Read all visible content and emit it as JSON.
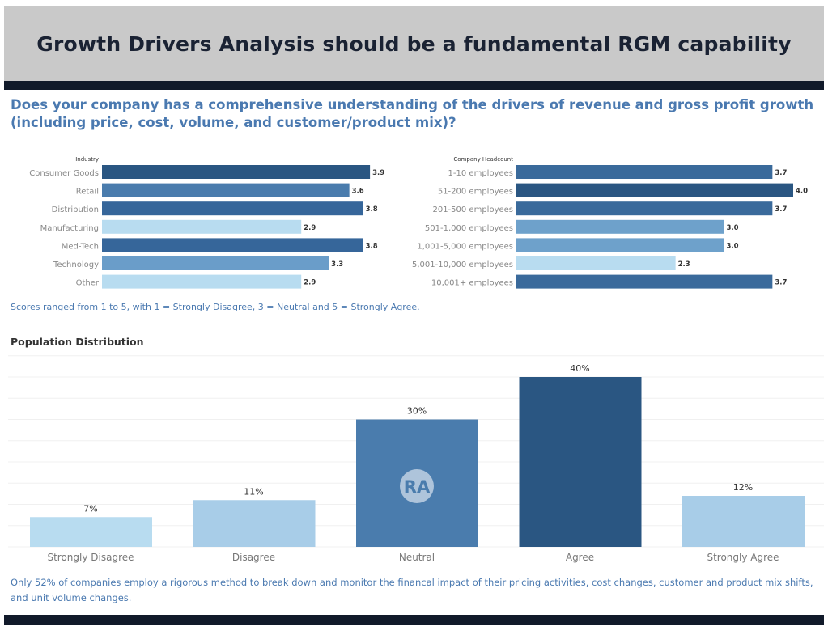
{
  "header": {
    "title": "Growth Drivers Analysis should be a fundamental RGM capability"
  },
  "question": "Does your company has a comprehensive understanding of the drivers of revenue and gross profit growth (including price, cost, volume, and customer/product mix)?",
  "score_note": "Scores ranged from 1 to 5, with 1 = Strongly Disagree, 3 = Neutral and 5 = Strongly Agree.",
  "footer_note": "Only 52% of companies employ a rigorous method to break down and monitor the financal impact of their pricing activities, cost changes, customer and product mix shifts, and unit volume changes.",
  "logo": "RA",
  "chart_data": [
    {
      "type": "bar",
      "orientation": "horizontal",
      "title": "Industry",
      "categories": [
        "Consumer Goods",
        "Retail",
        "Distribution",
        "Manufacturing",
        "Med-Tech",
        "Technology",
        "Other"
      ],
      "values": [
        3.9,
        3.6,
        3.8,
        2.9,
        3.8,
        3.3,
        2.9
      ],
      "data_labels": [
        "3.9",
        "3.6",
        "3.8",
        "2.9",
        "3.8",
        "3.3",
        "2.9"
      ],
      "colors": [
        "#2a5682",
        "#4a7cad",
        "#36669a",
        "#b8dcf0",
        "#36669a",
        "#6a9dc9",
        "#b8dcf0"
      ]
    },
    {
      "type": "bar",
      "orientation": "horizontal",
      "title": "Company Headcount",
      "categories": [
        "1-10 employees",
        "51-200 employees",
        "201-500 employees",
        "501-1,000 employees",
        "1,001-5,000 employees",
        "5,001-10,000 employees",
        "10,001+ employees"
      ],
      "values": [
        3.7,
        4.0,
        3.7,
        3.0,
        3.0,
        2.3,
        3.7
      ],
      "data_labels": [
        "3.7",
        "4.0",
        "3.7",
        "3.0",
        "3.0",
        "2.3",
        "3.7"
      ],
      "colors": [
        "#3a6a9b",
        "#2a5682",
        "#3a6a9b",
        "#6ea1cb",
        "#6ea1cb",
        "#b8dcf0",
        "#3a6a9b"
      ]
    },
    {
      "type": "bar",
      "title": "Population Distribution",
      "categories": [
        "Strongly Disagree",
        "Disagree",
        "Neutral",
        "Agree",
        "Strongly Agree"
      ],
      "values": [
        7,
        11,
        30,
        40,
        12
      ],
      "data_labels": [
        "7%",
        "11%",
        "30%",
        "40%",
        "12%"
      ],
      "ylim": [
        0,
        45
      ],
      "grid": true,
      "colors": [
        "#b8dcf0",
        "#a8cde8",
        "#4a7cad",
        "#2a5682",
        "#a8cde8"
      ]
    }
  ]
}
